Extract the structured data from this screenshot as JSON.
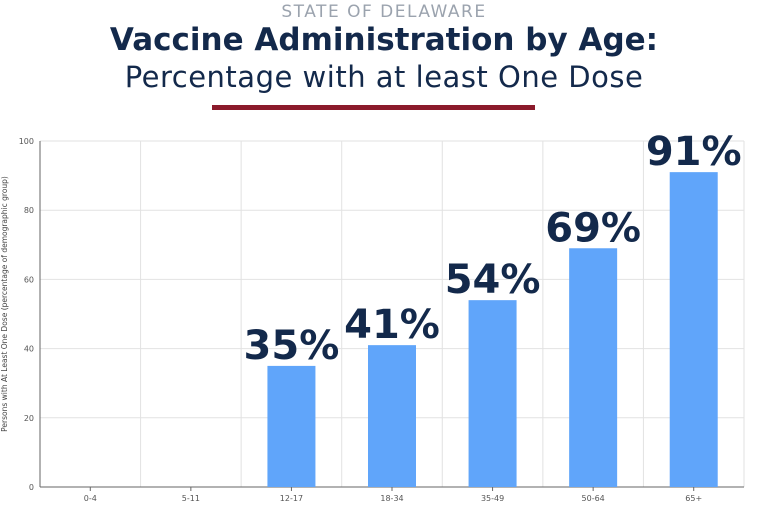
{
  "header": {
    "state": "STATE OF DELAWARE",
    "title": "Vaccine Administration by Age:",
    "subtitle": "Percentage with at least One Dose"
  },
  "colors": {
    "bar": "#60a5fa",
    "title": "#13294b",
    "rule": "#8b1a2b",
    "grid": "#e2e2e2",
    "axis": "#666666"
  },
  "chart_data": {
    "type": "bar",
    "title": "Vaccine Administration by Age: Percentage with at least One Dose",
    "ylabel": "Persons with At Least One Dose (percentage of demographic group)",
    "xlabel": "",
    "categories": [
      "0-4",
      "5-11",
      "12-17",
      "18-34",
      "35-49",
      "50-64",
      "65+"
    ],
    "values": [
      0,
      0,
      35,
      41,
      54,
      69,
      91
    ],
    "data_labels": [
      "",
      "",
      "35%",
      "41%",
      "54%",
      "69%",
      "91%"
    ],
    "ylim": [
      0,
      100
    ],
    "yticks": [
      0,
      20,
      40,
      60,
      80,
      100
    ],
    "grid": true,
    "legend": "none"
  }
}
